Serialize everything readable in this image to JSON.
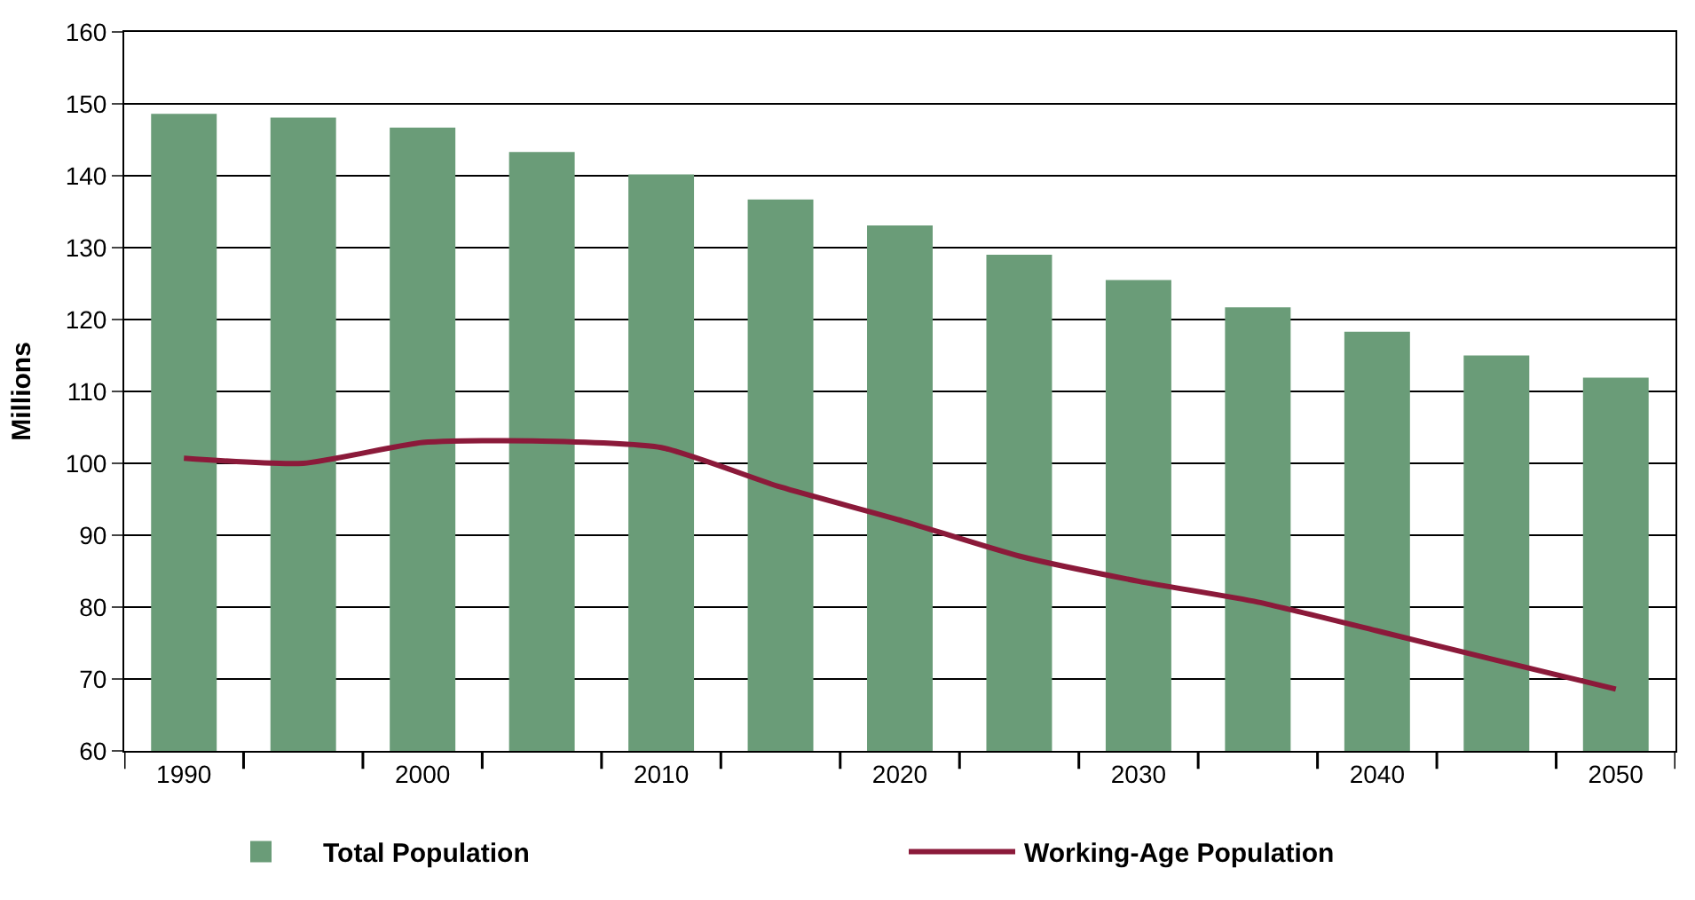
{
  "chart_data": {
    "type": "bar",
    "ylabel": "Millions",
    "categories": [
      "1990",
      null,
      "2000",
      null,
      "2010",
      null,
      "2020",
      null,
      "2030",
      null,
      "2040",
      null,
      "2050"
    ],
    "series": [
      {
        "name": "Total Population",
        "color": "#6a9c78",
        "values": [
          148.6,
          148.1,
          146.7,
          143.3,
          140.2,
          136.7,
          133.1,
          129.0,
          125.5,
          121.7,
          118.3,
          115.0,
          111.9
        ]
      },
      {
        "name": "Working-Age Population",
        "type": "line",
        "color": "#8b1a3a",
        "values": [
          100.7,
          100.0,
          102.9,
          103.1,
          102.2,
          96.7,
          92.1,
          87.1,
          83.6,
          80.7,
          76.7,
          72.6,
          68.6
        ]
      }
    ],
    "ylim": [
      60,
      160
    ],
    "yticks": [
      60,
      70,
      80,
      90,
      100,
      110,
      120,
      130,
      140,
      150,
      160
    ],
    "grid": "y",
    "legend": "bottom",
    "marker": "none",
    "line_style": "solid"
  }
}
